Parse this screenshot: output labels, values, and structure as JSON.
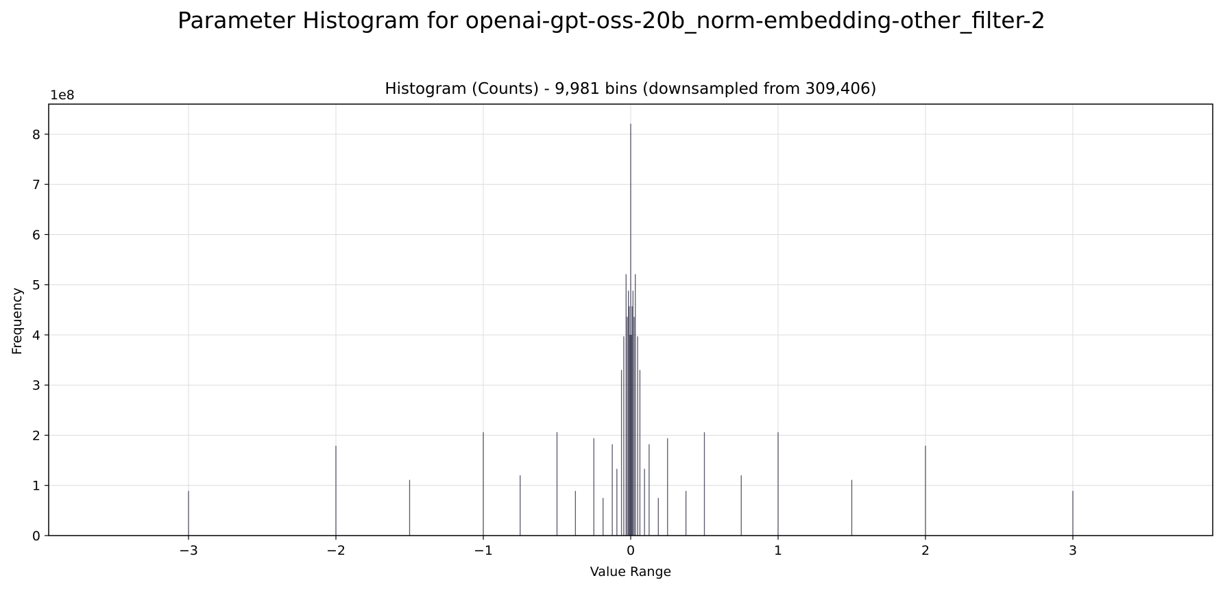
{
  "figure_title": "Parameter Histogram for openai-gpt-oss-20b_norm-embedding-other_filter-2",
  "chart_data": {
    "type": "bar",
    "title": "Histogram (Counts) - 9,981 bins (downsampled from 309,406)",
    "xlabel": "Value Range",
    "ylabel": "Frequency",
    "y_offset_label": "1e8",
    "xlim": [
      -3.0,
      3.0
    ],
    "ylim": [
      0,
      8.6
    ],
    "y_scale_exponent": 8,
    "grid": true,
    "legend": "none",
    "bar_color": "#1f1f3a",
    "x_ticks": [
      {
        "value": -3,
        "label": "−3"
      },
      {
        "value": -2,
        "label": "−2"
      },
      {
        "value": -1,
        "label": "−1"
      },
      {
        "value": 0,
        "label": "0"
      },
      {
        "value": 1,
        "label": "1"
      },
      {
        "value": 2,
        "label": "2"
      },
      {
        "value": 3,
        "label": "3"
      }
    ],
    "y_ticks": [
      {
        "value": 0,
        "label": "0"
      },
      {
        "value": 1,
        "label": "1"
      },
      {
        "value": 2,
        "label": "2"
      },
      {
        "value": 3,
        "label": "3"
      },
      {
        "value": 4,
        "label": "4"
      },
      {
        "value": 5,
        "label": "5"
      },
      {
        "value": 6,
        "label": "6"
      },
      {
        "value": 7,
        "label": "7"
      },
      {
        "value": 8,
        "label": "8"
      }
    ],
    "x": [
      -3.0,
      -2.0,
      -1.5,
      -1.0,
      -0.75,
      -0.5,
      -0.375,
      -0.25,
      -0.1875,
      -0.125,
      -0.09375,
      -0.0625,
      -0.046875,
      -0.03125,
      -0.0234375,
      -0.015625,
      -0.01,
      -0.005,
      0.0,
      0.005,
      0.01,
      0.015625,
      0.0234375,
      0.03125,
      0.046875,
      0.0625,
      0.09375,
      0.125,
      0.1875,
      0.25,
      0.375,
      0.5,
      0.75,
      1.0,
      1.5,
      2.0,
      3.0
    ],
    "values": [
      0.89,
      1.79,
      1.11,
      2.06,
      1.2,
      2.06,
      0.89,
      1.94,
      0.75,
      1.82,
      1.33,
      3.3,
      3.97,
      5.21,
      4.36,
      4.88,
      4.57,
      4.0,
      8.21,
      4.0,
      4.57,
      4.88,
      4.36,
      5.21,
      3.97,
      3.3,
      1.33,
      1.82,
      0.75,
      1.94,
      0.89,
      2.06,
      1.2,
      2.06,
      1.11,
      1.79,
      0.89
    ]
  }
}
